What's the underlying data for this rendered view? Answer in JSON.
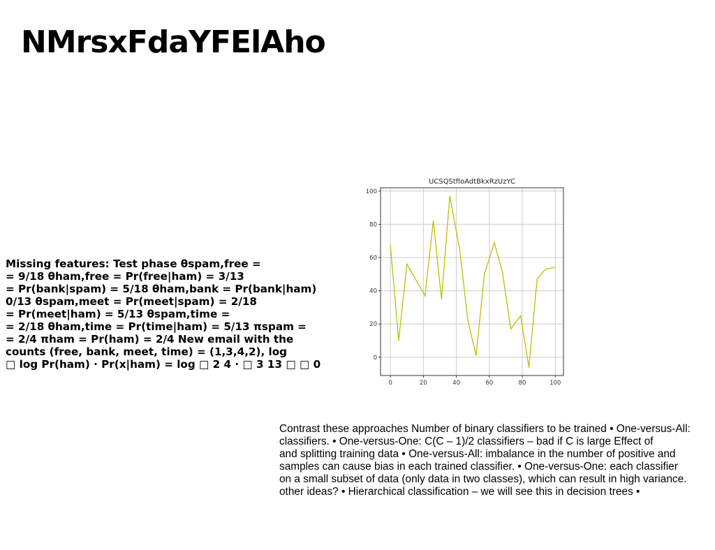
{
  "slide": {
    "title": "NMrsxFdaYFElAho",
    "left_text_lines": [
      "Missing features: Test phase θspam,free =",
      "= 9/18 θham,free = Pr(free|ham) = 3/13",
      "= Pr(bank|spam) = 5/18 θham,bank = Pr(bank|ham)",
      "0/13 θspam,meet = Pr(meet|spam) = 2/18",
      "= Pr(meet|ham) = 5/13 θspam,time =",
      "= 2/18 θham,time = Pr(time|ham) = 5/13 πspam =",
      "= 2/4 πham = Pr(ham) = 2/4 New email with the",
      "counts (free, bank, meet, time) = (1,3,4,2), log",
      "□ log Pr(ham) · Pr(x|ham) = log □ 2 4 · □ 3 13 □ □ 0"
    ],
    "right_text_lines": [
      "Contrast these approaches Number of binary classifiers to be trained • One-versus-All:",
      "classifiers. • One-versus-One: C(C – 1)/2 classifiers – bad if C is large Effect of",
      "and splitting training data • One-versus-All: imbalance in the number of positive and",
      "samples can cause bias in each trained classifier. • One-versus-One: each classifier",
      "on a small subset of data (only data in two classes), which can result in high variance.",
      "other ideas? • Hierarchical classification – we will see this in decision trees •"
    ]
  },
  "chart_data": {
    "type": "line",
    "title": "UCSQStfioAdtBkxRzUzYC",
    "xlabel": "",
    "ylabel": "",
    "x": [
      0,
      5,
      10,
      21,
      26,
      31,
      36,
      42,
      47,
      52,
      57,
      63,
      68,
      73,
      79,
      84,
      89,
      94,
      100
    ],
    "series": [
      {
        "values": [
          67,
          10,
          56,
          37,
          82,
          35,
          97,
          65,
          22,
          1,
          50,
          69,
          51,
          17,
          25,
          -6,
          47,
          53,
          54
        ],
        "color": "#bfbf00"
      }
    ],
    "xlim": [
      -6,
      105
    ],
    "ylim": [
      -11,
      102
    ],
    "xticks": [
      0,
      20,
      40,
      60,
      80,
      100
    ],
    "yticks": [
      0,
      20,
      40,
      60,
      80,
      100
    ],
    "grid": true,
    "legend": "none"
  }
}
